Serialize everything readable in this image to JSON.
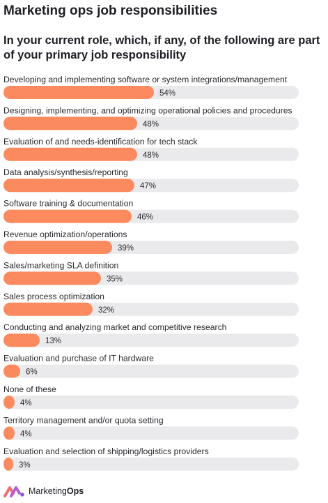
{
  "title": "Marketing ops job responsibilities",
  "subtitle": "In your current role, which, if any, of the following are part of your primary job responsibility",
  "brand": {
    "name_regular": "Marketing",
    "name_bold": "Ops"
  },
  "colors": {
    "bar": "#fb8a5e",
    "track": "#eaeaec",
    "text": "#2a2a30"
  },
  "chart_data": {
    "type": "bar",
    "orientation": "horizontal",
    "value_suffix": "%",
    "xlim": [
      0,
      100
    ],
    "categories": [
      "Developing and implementing software or system integrations/management",
      "Designing, implementing, and optimizing operational policies and procedures",
      "Evaluation of and needs-identification for tech stack",
      "Data analysis/synthesis/reporting",
      "Software training & documentation",
      "Revenue optimization/operations",
      "Sales/marketing SLA definition",
      "Sales process optimization",
      "Conducting and analyzing market and competitive research",
      "Evaluation and purchase of IT hardware",
      "None of these",
      "Territory management and/or quota setting",
      "Evaluation and selection of shipping/logistics providers"
    ],
    "values": [
      54,
      48,
      48,
      47,
      46,
      39,
      35,
      32,
      13,
      6,
      4,
      4,
      3
    ]
  }
}
